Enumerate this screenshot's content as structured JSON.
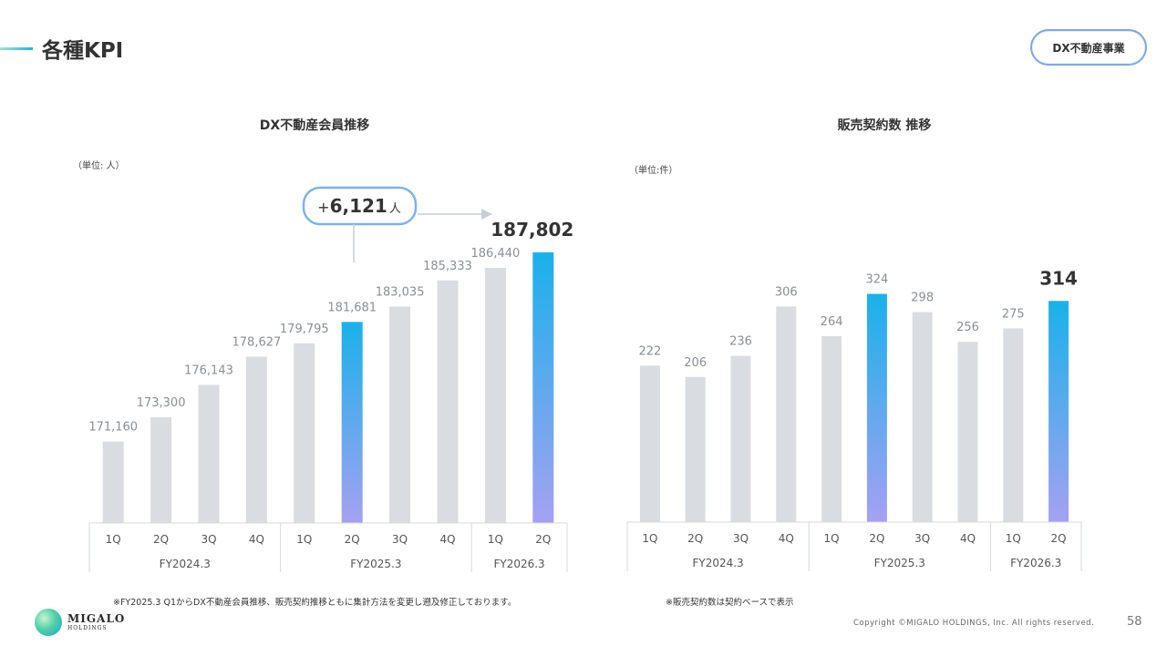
{
  "page": {
    "title": "各種KPI",
    "badge": "DX不動産事業",
    "copyright": "Copyright ©MIGALO HOLDINGS, Inc. All rights reserved.",
    "page_number": "58",
    "logo": {
      "line1": "MIGALO",
      "line2": "HOLDINGS"
    }
  },
  "colors": {
    "bar_gray": "#d9dce1",
    "highlight_top": "#1ab1ea",
    "highlight_bottom": "#a5a1f2",
    "callout_border": "#7eb1ef"
  },
  "chart_data": [
    {
      "type": "bar",
      "title": "DX不動産会員推移",
      "unit": "（単位: 人）",
      "categories": [
        "1Q",
        "2Q",
        "3Q",
        "4Q",
        "1Q",
        "2Q",
        "3Q",
        "4Q",
        "1Q",
        "2Q"
      ],
      "groups": [
        {
          "label": "FY2024.3",
          "count": 4
        },
        {
          "label": "FY2025.3",
          "count": 4
        },
        {
          "label": "FY2026.3",
          "count": 2
        }
      ],
      "values": [
        171160,
        173300,
        176143,
        178627,
        179795,
        181681,
        183035,
        185333,
        186440,
        187802
      ],
      "labels": [
        "171,160",
        "173,300",
        "176,143",
        "178,627",
        "179,795",
        "181,681",
        "183,035",
        "185,333",
        "186,440",
        "187,802"
      ],
      "highlight": [
        5,
        9
      ],
      "emphasis_index": 9,
      "ylim": [
        164000,
        189000
      ],
      "callout": {
        "prefix": "+",
        "value": "6,121",
        "unit": "人"
      },
      "footnote": "※FY2025.3 Q1からDX不動産会員推移、販売契約推移ともに集計方法を変更し遡及修正しております。"
    },
    {
      "type": "bar",
      "title": "販売契約数 推移",
      "unit": "（単位:件）",
      "categories": [
        "1Q",
        "2Q",
        "3Q",
        "4Q",
        "1Q",
        "2Q",
        "3Q",
        "4Q",
        "1Q",
        "2Q"
      ],
      "groups": [
        {
          "label": "FY2024.3",
          "count": 4
        },
        {
          "label": "FY2025.3",
          "count": 4
        },
        {
          "label": "FY2026.3",
          "count": 2
        }
      ],
      "values": [
        222,
        206,
        236,
        306,
        264,
        324,
        298,
        256,
        275,
        314
      ],
      "labels": [
        "222",
        "206",
        "236",
        "306",
        "264",
        "324",
        "298",
        "256",
        "275",
        "314"
      ],
      "highlight": [
        5,
        9
      ],
      "emphasis_index": 9,
      "ylim": [
        0,
        370
      ],
      "footnote": "※販売契約数は契約ベースで表示"
    }
  ]
}
